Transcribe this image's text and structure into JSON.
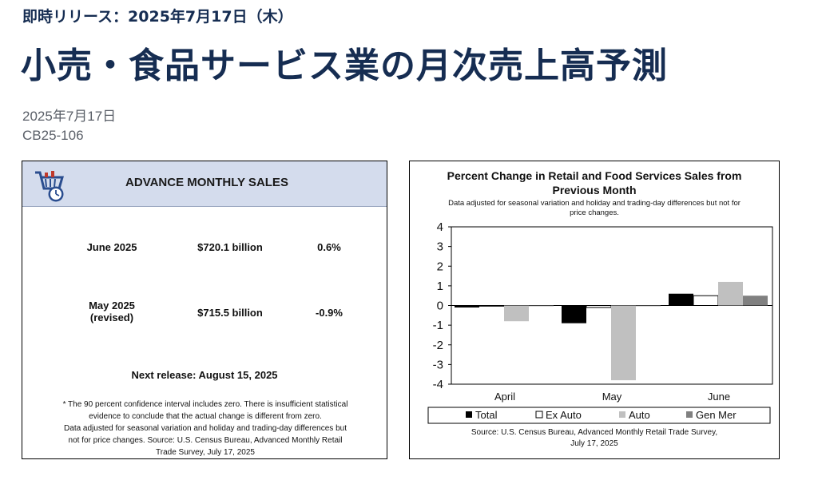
{
  "header": {
    "release_label": "即時リリース：2025年7月17日（木）",
    "title": "小売・食品サービス業の月次売上高予測",
    "date": "2025年7月17日",
    "release_id": "CB25-106"
  },
  "sales_panel": {
    "title": "ADVANCE MONTHLY SALES",
    "icon": "shopping-cart-clock-icon",
    "rows": [
      {
        "period_line1": "June 2025",
        "period_line2": "",
        "amount": "$720.1 billion",
        "change": "0.6%"
      },
      {
        "period_line1": "May 2025",
        "period_line2": "(revised)",
        "amount": "$715.5 billion",
        "change": "-0.9%"
      }
    ],
    "next_release": "Next release: August 15, 2025",
    "footnote_line1": "* The 90 percent confidence interval includes zero. There is insufficient statistical",
    "footnote_line2": "evidence to conclude that the actual change is different from zero.",
    "footnote_line3": "Data adjusted for seasonal variation and holiday and trading-day differences but",
    "footnote_line4": "not for price changes. Source: U.S. Census Bureau, Advanced Monthly Retail",
    "footnote_line5": "Trade Survey, July 17, 2025"
  },
  "chart_data": {
    "type": "bar",
    "title_line1": "Percent Change in Retail and Food Services Sales from",
    "title_line2": "Previous Month",
    "subtitle_line1": "Data adjusted for seasonal variation and holiday and trading-day differences but not for",
    "subtitle_line2": "price changes.",
    "categories": [
      "April",
      "May",
      "June"
    ],
    "series": [
      {
        "name": "Total",
        "values": [
          -0.1,
          -0.9,
          0.6
        ],
        "color": "#000000",
        "marker": "■"
      },
      {
        "name": "Ex Auto",
        "values": [
          0.0,
          -0.1,
          0.5
        ],
        "color": "#ffffff",
        "marker": "☐"
      },
      {
        "name": "Auto",
        "values": [
          -0.8,
          -3.8,
          1.2
        ],
        "color": "#c0c0c0",
        "marker": "■"
      },
      {
        "name": "Gen Mer",
        "values": [
          0.0,
          0.0,
          0.5
        ],
        "color": "#808080",
        "marker": "■"
      }
    ],
    "ylim": [
      -4,
      4
    ],
    "yticks": [
      "4",
      "3",
      "2",
      "1",
      "0",
      "-1",
      "-2",
      "-3",
      "-4"
    ],
    "grid": false,
    "legend_placement": "bottom",
    "source_line1": "Source: U.S. Census Bureau, Advanced Monthly Retail Trade Survey,",
    "source_line2": "July 17, 2025"
  }
}
